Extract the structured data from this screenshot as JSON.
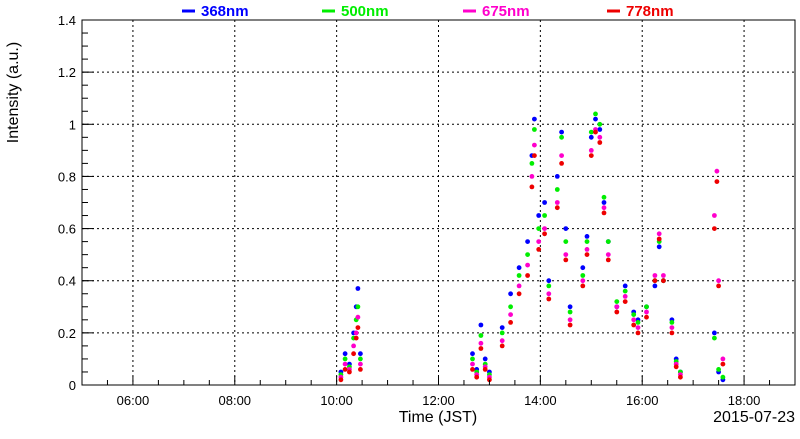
{
  "chart_data": {
    "type": "scatter",
    "title": "",
    "xlabel": "Time (JST)",
    "ylabel": "Intensity (a.u.)",
    "date_label": "2015-07-23",
    "xlim": [
      "05:00",
      "19:00"
    ],
    "ylim": [
      0,
      1.4
    ],
    "x_ticks": [
      "06:00",
      "08:00",
      "10:00",
      "12:00",
      "14:00",
      "16:00",
      "18:00"
    ],
    "y_ticks": [
      "0",
      "0.2",
      "0.4",
      "0.6",
      "0.8",
      "1",
      "1.2",
      "1.4"
    ],
    "grid": true,
    "legend_position": "top",
    "series": [
      {
        "name": "368nm",
        "color": "#0000ff",
        "points": [
          [
            "10:05",
            0.05
          ],
          [
            "10:10",
            0.12
          ],
          [
            "10:15",
            0.08
          ],
          [
            "10:20",
            0.2
          ],
          [
            "10:23",
            0.3
          ],
          [
            "10:25",
            0.37
          ],
          [
            "10:28",
            0.12
          ],
          [
            "12:40",
            0.12
          ],
          [
            "12:45",
            0.06
          ],
          [
            "12:50",
            0.23
          ],
          [
            "12:55",
            0.1
          ],
          [
            "13:00",
            0.05
          ],
          [
            "13:15",
            0.22
          ],
          [
            "13:25",
            0.35
          ],
          [
            "13:35",
            0.45
          ],
          [
            "13:45",
            0.55
          ],
          [
            "13:50",
            0.88
          ],
          [
            "13:53",
            1.02
          ],
          [
            "13:58",
            0.65
          ],
          [
            "14:05",
            0.7
          ],
          [
            "14:10",
            0.4
          ],
          [
            "14:20",
            0.8
          ],
          [
            "14:25",
            0.97
          ],
          [
            "14:30",
            0.6
          ],
          [
            "14:35",
            0.3
          ],
          [
            "14:50",
            0.45
          ],
          [
            "14:55",
            0.57
          ],
          [
            "15:00",
            0.95
          ],
          [
            "15:05",
            1.02
          ],
          [
            "15:10",
            0.98
          ],
          [
            "15:15",
            0.7
          ],
          [
            "15:20",
            0.55
          ],
          [
            "15:30",
            0.3
          ],
          [
            "15:40",
            0.38
          ],
          [
            "15:50",
            0.28
          ],
          [
            "15:55",
            0.25
          ],
          [
            "16:05",
            0.3
          ],
          [
            "16:15",
            0.38
          ],
          [
            "16:20",
            0.53
          ],
          [
            "16:25",
            0.4
          ],
          [
            "16:35",
            0.25
          ],
          [
            "16:40",
            0.1
          ],
          [
            "16:45",
            0.05
          ],
          [
            "17:25",
            0.2
          ],
          [
            "17:30",
            0.05
          ],
          [
            "17:35",
            0.02
          ]
        ]
      },
      {
        "name": "500nm",
        "color": "#00ee00",
        "points": [
          [
            "10:05",
            0.04
          ],
          [
            "10:10",
            0.1
          ],
          [
            "10:15",
            0.07
          ],
          [
            "10:20",
            0.18
          ],
          [
            "10:23",
            0.25
          ],
          [
            "10:25",
            0.3
          ],
          [
            "10:28",
            0.1
          ],
          [
            "12:40",
            0.1
          ],
          [
            "12:45",
            0.05
          ],
          [
            "12:50",
            0.19
          ],
          [
            "12:55",
            0.08
          ],
          [
            "13:00",
            0.04
          ],
          [
            "13:15",
            0.2
          ],
          [
            "13:25",
            0.3
          ],
          [
            "13:35",
            0.42
          ],
          [
            "13:45",
            0.5
          ],
          [
            "13:50",
            0.85
          ],
          [
            "13:53",
            0.98
          ],
          [
            "13:58",
            0.6
          ],
          [
            "14:05",
            0.65
          ],
          [
            "14:10",
            0.38
          ],
          [
            "14:20",
            0.75
          ],
          [
            "14:25",
            0.95
          ],
          [
            "14:30",
            0.55
          ],
          [
            "14:35",
            0.28
          ],
          [
            "14:50",
            0.42
          ],
          [
            "14:55",
            0.55
          ],
          [
            "15:00",
            0.97
          ],
          [
            "15:05",
            1.04
          ],
          [
            "15:10",
            1.0
          ],
          [
            "15:15",
            0.72
          ],
          [
            "15:20",
            0.55
          ],
          [
            "15:30",
            0.32
          ],
          [
            "15:40",
            0.36
          ],
          [
            "15:50",
            0.27
          ],
          [
            "15:55",
            0.24
          ],
          [
            "16:05",
            0.3
          ],
          [
            "16:15",
            0.4
          ],
          [
            "16:20",
            0.55
          ],
          [
            "16:25",
            0.4
          ],
          [
            "16:35",
            0.24
          ],
          [
            "16:40",
            0.09
          ],
          [
            "16:45",
            0.05
          ],
          [
            "17:25",
            0.18
          ],
          [
            "17:30",
            0.06
          ],
          [
            "17:35",
            0.03
          ]
        ]
      },
      {
        "name": "675nm",
        "color": "#ff00cc",
        "points": [
          [
            "10:05",
            0.03
          ],
          [
            "10:10",
            0.08
          ],
          [
            "10:15",
            0.06
          ],
          [
            "10:20",
            0.15
          ],
          [
            "10:23",
            0.2
          ],
          [
            "10:25",
            0.26
          ],
          [
            "10:28",
            0.08
          ],
          [
            "12:40",
            0.08
          ],
          [
            "12:45",
            0.04
          ],
          [
            "12:50",
            0.16
          ],
          [
            "12:55",
            0.07
          ],
          [
            "13:00",
            0.03
          ],
          [
            "13:15",
            0.17
          ],
          [
            "13:25",
            0.27
          ],
          [
            "13:35",
            0.38
          ],
          [
            "13:45",
            0.46
          ],
          [
            "13:50",
            0.8
          ],
          [
            "13:53",
            0.92
          ],
          [
            "13:58",
            0.55
          ],
          [
            "14:05",
            0.6
          ],
          [
            "14:10",
            0.35
          ],
          [
            "14:20",
            0.7
          ],
          [
            "14:25",
            0.88
          ],
          [
            "14:30",
            0.5
          ],
          [
            "14:35",
            0.25
          ],
          [
            "14:50",
            0.4
          ],
          [
            "14:55",
            0.52
          ],
          [
            "15:00",
            0.9
          ],
          [
            "15:05",
            0.98
          ],
          [
            "15:10",
            0.95
          ],
          [
            "15:15",
            0.68
          ],
          [
            "15:20",
            0.5
          ],
          [
            "15:30",
            0.3
          ],
          [
            "15:40",
            0.34
          ],
          [
            "15:50",
            0.25
          ],
          [
            "15:55",
            0.22
          ],
          [
            "16:05",
            0.28
          ],
          [
            "16:15",
            0.42
          ],
          [
            "16:20",
            0.58
          ],
          [
            "16:25",
            0.42
          ],
          [
            "16:35",
            0.22
          ],
          [
            "16:40",
            0.08
          ],
          [
            "16:45",
            0.04
          ],
          [
            "17:25",
            0.65
          ],
          [
            "17:28",
            0.82
          ],
          [
            "17:30",
            0.4
          ],
          [
            "17:35",
            0.1
          ]
        ]
      },
      {
        "name": "778nm",
        "color": "#ee0000",
        "points": [
          [
            "10:05",
            0.02
          ],
          [
            "10:10",
            0.06
          ],
          [
            "10:15",
            0.05
          ],
          [
            "10:20",
            0.12
          ],
          [
            "10:23",
            0.18
          ],
          [
            "10:25",
            0.22
          ],
          [
            "10:28",
            0.06
          ],
          [
            "12:40",
            0.06
          ],
          [
            "12:45",
            0.03
          ],
          [
            "12:50",
            0.14
          ],
          [
            "12:55",
            0.06
          ],
          [
            "13:00",
            0.02
          ],
          [
            "13:15",
            0.15
          ],
          [
            "13:25",
            0.24
          ],
          [
            "13:35",
            0.35
          ],
          [
            "13:45",
            0.42
          ],
          [
            "13:50",
            0.76
          ],
          [
            "13:53",
            0.88
          ],
          [
            "13:58",
            0.52
          ],
          [
            "14:05",
            0.58
          ],
          [
            "14:10",
            0.33
          ],
          [
            "14:20",
            0.68
          ],
          [
            "14:25",
            0.85
          ],
          [
            "14:30",
            0.48
          ],
          [
            "14:35",
            0.23
          ],
          [
            "14:50",
            0.38
          ],
          [
            "14:55",
            0.5
          ],
          [
            "15:00",
            0.88
          ],
          [
            "15:05",
            0.97
          ],
          [
            "15:10",
            0.93
          ],
          [
            "15:15",
            0.66
          ],
          [
            "15:20",
            0.48
          ],
          [
            "15:30",
            0.28
          ],
          [
            "15:40",
            0.32
          ],
          [
            "15:50",
            0.23
          ],
          [
            "15:55",
            0.2
          ],
          [
            "16:05",
            0.26
          ],
          [
            "16:15",
            0.4
          ],
          [
            "16:20",
            0.56
          ],
          [
            "16:25",
            0.4
          ],
          [
            "16:35",
            0.2
          ],
          [
            "16:40",
            0.07
          ],
          [
            "16:45",
            0.03
          ],
          [
            "17:25",
            0.6
          ],
          [
            "17:28",
            0.78
          ],
          [
            "17:30",
            0.38
          ],
          [
            "17:35",
            0.08
          ]
        ]
      }
    ]
  }
}
